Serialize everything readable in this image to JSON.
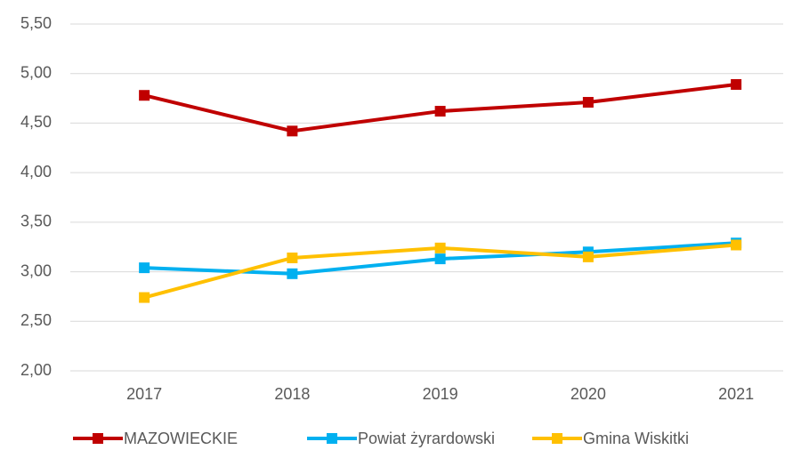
{
  "chart_data": {
    "type": "line",
    "categories": [
      "2017",
      "2018",
      "2019",
      "2020",
      "2021"
    ],
    "series": [
      {
        "name": "MAZOWIECKIE",
        "color": "#c00000",
        "values": [
          4.78,
          4.42,
          4.62,
          4.71,
          4.89
        ]
      },
      {
        "name": "Powiat żyrardowski",
        "color": "#00b0f0",
        "values": [
          3.04,
          2.98,
          3.13,
          3.2,
          3.29
        ]
      },
      {
        "name": "Gmina Wiskitki",
        "color": "#ffc000",
        "values": [
          2.74,
          3.14,
          3.24,
          3.15,
          3.27
        ]
      }
    ],
    "ylim": [
      2,
      5.5
    ],
    "yticks": [
      {
        "value": 2,
        "label": "2,00"
      },
      {
        "value": 2.5,
        "label": "2,50"
      },
      {
        "value": 3,
        "label": "3,00"
      },
      {
        "value": 3.5,
        "label": "3,50"
      },
      {
        "value": 4,
        "label": "4,00"
      },
      {
        "value": 4.5,
        "label": "4,50"
      },
      {
        "value": 5,
        "label": "5,00"
      },
      {
        "value": 5.5,
        "label": "5,50"
      }
    ],
    "grid": true,
    "legend": "bottom"
  }
}
